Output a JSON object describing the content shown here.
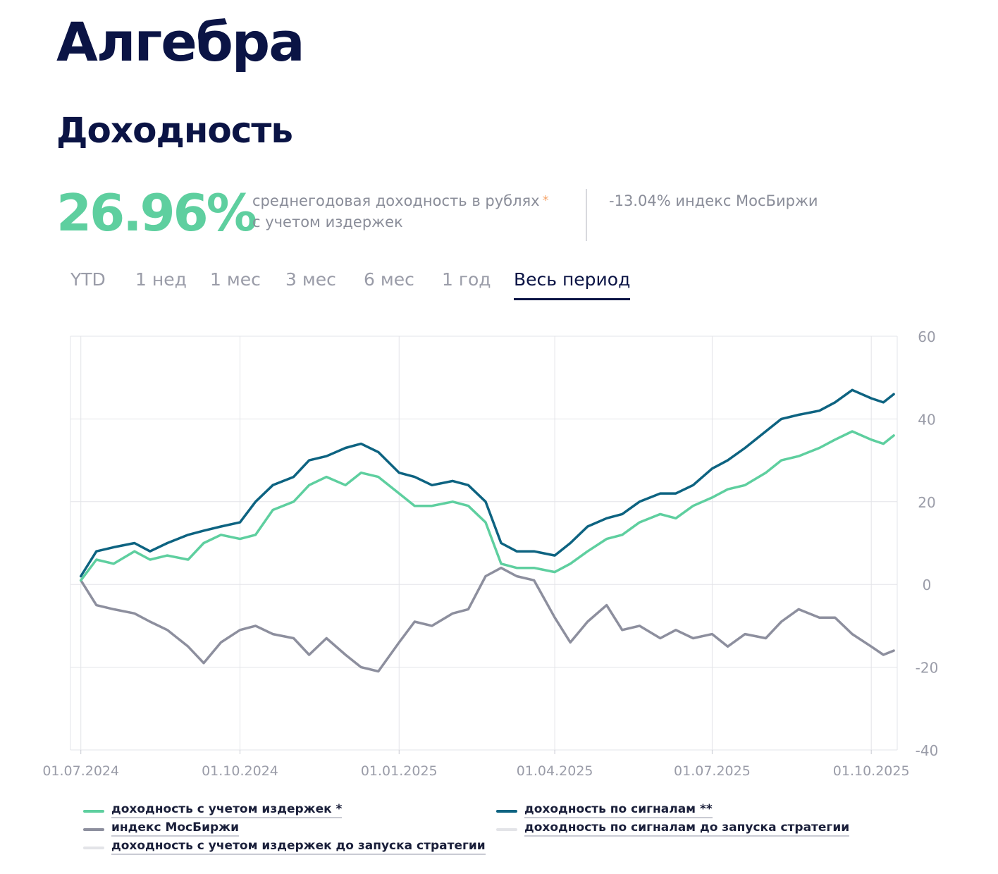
{
  "page": {
    "title": "Алгебра",
    "subtitle": "Доходность"
  },
  "kpi": {
    "value": "26.96%",
    "desc_line1": "среднегодовая доходность в рублях",
    "desc_star": "*",
    "desc_line2": "с учетом издержек",
    "index": "-13.04% индекс МосБиржи"
  },
  "tabs": [
    {
      "label": "YTD",
      "active": false
    },
    {
      "label": "1 нед",
      "active": false
    },
    {
      "label": "1 мес",
      "active": false
    },
    {
      "label": "3 мес",
      "active": false
    },
    {
      "label": "6 мес",
      "active": false
    },
    {
      "label": "1 год",
      "active": false
    },
    {
      "label": "Весь период",
      "active": true
    }
  ],
  "legend": [
    {
      "label": "доходность с учетом издержек *",
      "color": "#5ecf9f"
    },
    {
      "label": "доходность по сигналам **",
      "color": "#0d6381"
    },
    {
      "label": "индекс МосБиржи",
      "color": "#8d8f9e"
    },
    {
      "label": "доходность по сигналам до запуска стратегии",
      "color": "#e3e4e8"
    },
    {
      "label": "доходность с учетом издержек до запуска стратегии",
      "color": "#e3e4e8"
    }
  ],
  "chart_data": {
    "type": "line",
    "x_ticks": [
      "01.07.2024",
      "01.10.2024",
      "01.01.2025",
      "01.04.2025",
      "01.07.2025",
      "01.10.2025"
    ],
    "y_ticks": [
      60,
      40,
      20,
      0,
      -20,
      -40
    ],
    "ylim": [
      -40,
      60
    ],
    "x_start": "2024-06-25",
    "x_end": "2025-10-16",
    "grid": true,
    "y_axis_position": "right",
    "series": [
      {
        "name": "доходность с учетом издержек *",
        "color": "#5ecf9f",
        "points": [
          [
            "2024-07-01",
            1
          ],
          [
            "2024-07-10",
            6
          ],
          [
            "2024-07-20",
            5
          ],
          [
            "2024-08-01",
            8
          ],
          [
            "2024-08-10",
            6
          ],
          [
            "2024-08-20",
            7
          ],
          [
            "2024-09-01",
            6
          ],
          [
            "2024-09-10",
            10
          ],
          [
            "2024-09-20",
            12
          ],
          [
            "2024-10-01",
            11
          ],
          [
            "2024-10-10",
            12
          ],
          [
            "2024-10-20",
            18
          ],
          [
            "2024-11-01",
            20
          ],
          [
            "2024-11-10",
            24
          ],
          [
            "2024-11-20",
            26
          ],
          [
            "2024-12-01",
            24
          ],
          [
            "2024-12-10",
            27
          ],
          [
            "2024-12-20",
            26
          ],
          [
            "2025-01-01",
            22
          ],
          [
            "2025-01-10",
            19
          ],
          [
            "2025-01-20",
            19
          ],
          [
            "2025-02-01",
            20
          ],
          [
            "2025-02-10",
            19
          ],
          [
            "2025-02-20",
            15
          ],
          [
            "2025-03-01",
            5
          ],
          [
            "2025-03-10",
            4
          ],
          [
            "2025-03-20",
            4
          ],
          [
            "2025-04-01",
            3
          ],
          [
            "2025-04-10",
            5
          ],
          [
            "2025-04-20",
            8
          ],
          [
            "2025-05-01",
            11
          ],
          [
            "2025-05-10",
            12
          ],
          [
            "2025-05-20",
            15
          ],
          [
            "2025-06-01",
            17
          ],
          [
            "2025-06-10",
            16
          ],
          [
            "2025-06-20",
            19
          ],
          [
            "2025-07-01",
            21
          ],
          [
            "2025-07-10",
            23
          ],
          [
            "2025-07-20",
            24
          ],
          [
            "2025-08-01",
            27
          ],
          [
            "2025-08-10",
            30
          ],
          [
            "2025-08-20",
            31
          ],
          [
            "2025-09-01",
            33
          ],
          [
            "2025-09-10",
            35
          ],
          [
            "2025-09-20",
            37
          ],
          [
            "2025-10-01",
            35
          ],
          [
            "2025-10-08",
            34
          ],
          [
            "2025-10-14",
            36
          ]
        ]
      },
      {
        "name": "доходность по сигналам **",
        "color": "#0d6381",
        "points": [
          [
            "2024-07-01",
            2
          ],
          [
            "2024-07-10",
            8
          ],
          [
            "2024-07-20",
            9
          ],
          [
            "2024-08-01",
            10
          ],
          [
            "2024-08-10",
            8
          ],
          [
            "2024-08-20",
            10
          ],
          [
            "2024-09-01",
            12
          ],
          [
            "2024-09-10",
            13
          ],
          [
            "2024-09-20",
            14
          ],
          [
            "2024-10-01",
            15
          ],
          [
            "2024-10-10",
            20
          ],
          [
            "2024-10-20",
            24
          ],
          [
            "2024-11-01",
            26
          ],
          [
            "2024-11-10",
            30
          ],
          [
            "2024-11-20",
            31
          ],
          [
            "2024-12-01",
            33
          ],
          [
            "2024-12-10",
            34
          ],
          [
            "2024-12-20",
            32
          ],
          [
            "2025-01-01",
            27
          ],
          [
            "2025-01-10",
            26
          ],
          [
            "2025-01-20",
            24
          ],
          [
            "2025-02-01",
            25
          ],
          [
            "2025-02-10",
            24
          ],
          [
            "2025-02-20",
            20
          ],
          [
            "2025-03-01",
            10
          ],
          [
            "2025-03-10",
            8
          ],
          [
            "2025-03-20",
            8
          ],
          [
            "2025-04-01",
            7
          ],
          [
            "2025-04-10",
            10
          ],
          [
            "2025-04-20",
            14
          ],
          [
            "2025-05-01",
            16
          ],
          [
            "2025-05-10",
            17
          ],
          [
            "2025-05-20",
            20
          ],
          [
            "2025-06-01",
            22
          ],
          [
            "2025-06-10",
            22
          ],
          [
            "2025-06-20",
            24
          ],
          [
            "2025-07-01",
            28
          ],
          [
            "2025-07-10",
            30
          ],
          [
            "2025-07-20",
            33
          ],
          [
            "2025-08-01",
            37
          ],
          [
            "2025-08-10",
            40
          ],
          [
            "2025-08-20",
            41
          ],
          [
            "2025-09-01",
            42
          ],
          [
            "2025-09-10",
            44
          ],
          [
            "2025-09-20",
            47
          ],
          [
            "2025-10-01",
            45
          ],
          [
            "2025-10-08",
            44
          ],
          [
            "2025-10-14",
            46
          ]
        ]
      },
      {
        "name": "индекс МосБиржи",
        "color": "#8d8f9e",
        "points": [
          [
            "2024-07-01",
            1
          ],
          [
            "2024-07-10",
            -5
          ],
          [
            "2024-07-20",
            -6
          ],
          [
            "2024-08-01",
            -7
          ],
          [
            "2024-08-10",
            -9
          ],
          [
            "2024-08-20",
            -11
          ],
          [
            "2024-09-01",
            -15
          ],
          [
            "2024-09-10",
            -19
          ],
          [
            "2024-09-20",
            -14
          ],
          [
            "2024-10-01",
            -11
          ],
          [
            "2024-10-10",
            -10
          ],
          [
            "2024-10-20",
            -12
          ],
          [
            "2024-11-01",
            -13
          ],
          [
            "2024-11-10",
            -17
          ],
          [
            "2024-11-20",
            -13
          ],
          [
            "2024-12-01",
            -17
          ],
          [
            "2024-12-10",
            -20
          ],
          [
            "2024-12-20",
            -21
          ],
          [
            "2025-01-01",
            -14
          ],
          [
            "2025-01-10",
            -9
          ],
          [
            "2025-01-20",
            -10
          ],
          [
            "2025-02-01",
            -7
          ],
          [
            "2025-02-10",
            -6
          ],
          [
            "2025-02-20",
            2
          ],
          [
            "2025-03-01",
            4
          ],
          [
            "2025-03-10",
            2
          ],
          [
            "2025-03-20",
            1
          ],
          [
            "2025-04-01",
            -8
          ],
          [
            "2025-04-10",
            -14
          ],
          [
            "2025-04-20",
            -9
          ],
          [
            "2025-05-01",
            -5
          ],
          [
            "2025-05-10",
            -11
          ],
          [
            "2025-05-20",
            -10
          ],
          [
            "2025-06-01",
            -13
          ],
          [
            "2025-06-10",
            -11
          ],
          [
            "2025-06-20",
            -13
          ],
          [
            "2025-07-01",
            -12
          ],
          [
            "2025-07-10",
            -15
          ],
          [
            "2025-07-20",
            -12
          ],
          [
            "2025-08-01",
            -13
          ],
          [
            "2025-08-10",
            -9
          ],
          [
            "2025-08-20",
            -6
          ],
          [
            "2025-09-01",
            -8
          ],
          [
            "2025-09-10",
            -8
          ],
          [
            "2025-09-20",
            -12
          ],
          [
            "2025-10-01",
            -15
          ],
          [
            "2025-10-08",
            -17
          ],
          [
            "2025-10-14",
            -16
          ]
        ]
      }
    ]
  }
}
